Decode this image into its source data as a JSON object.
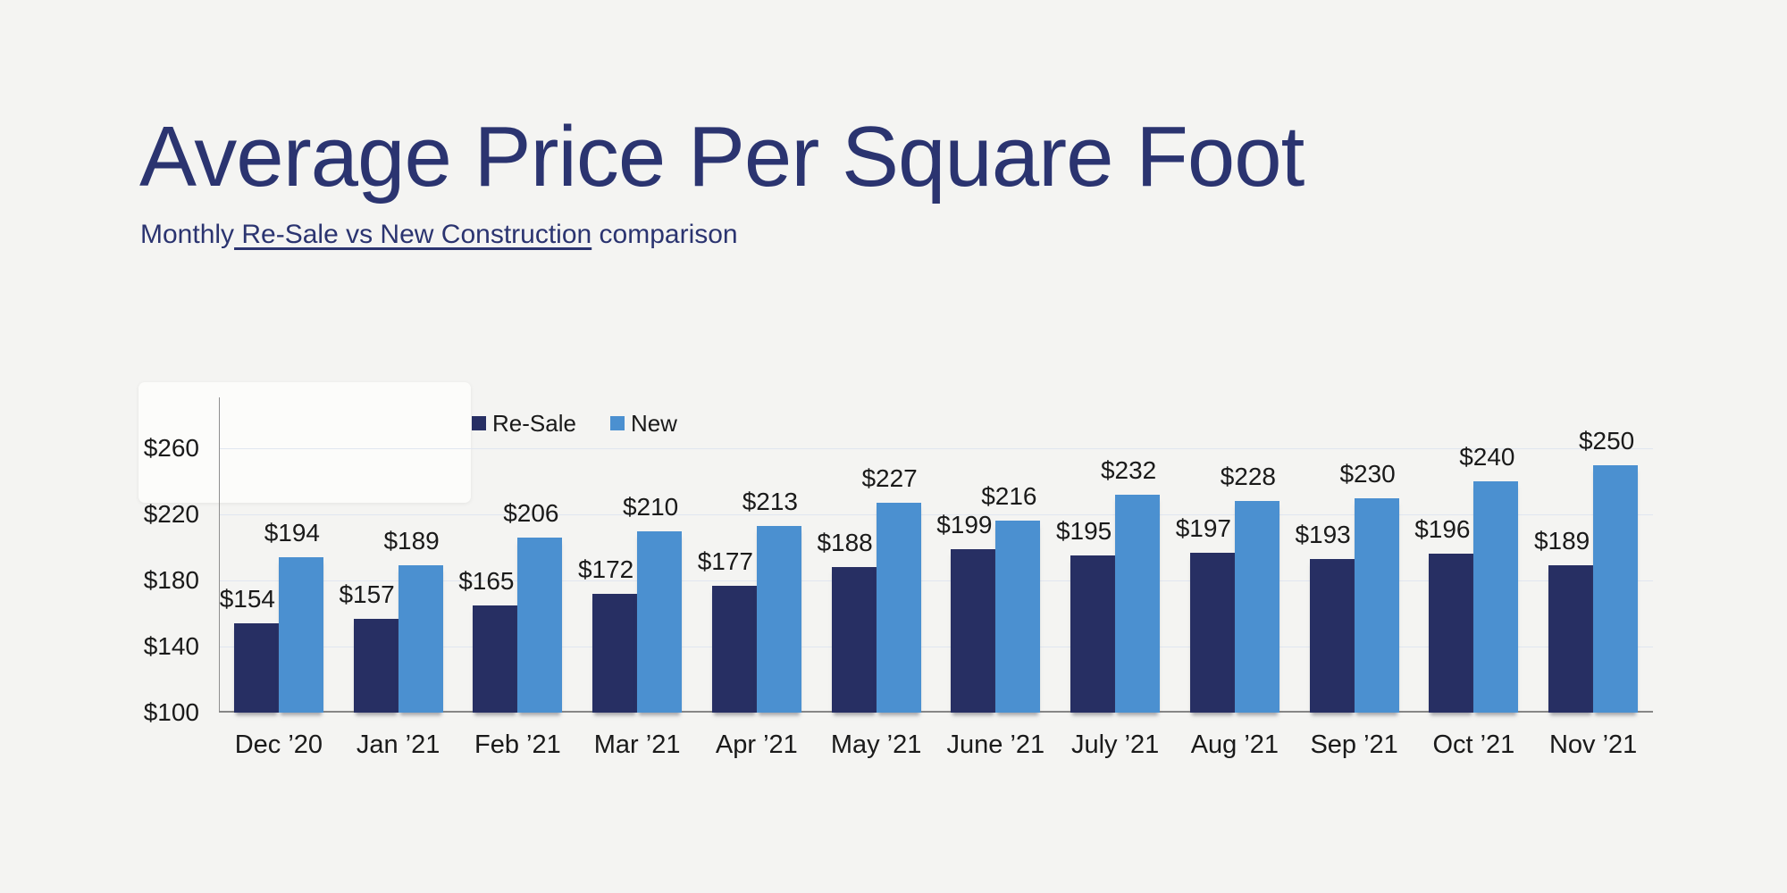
{
  "page": {
    "title": "Average Price Per Square Foot",
    "subtitle": {
      "prefix": "Monthly",
      "link": " Re-Sale vs New Construction",
      "suffix": " comparison"
    }
  },
  "colors": {
    "background": "#F4F4F2",
    "heading": "#2B3470",
    "resale_bar": "#272F63",
    "new_bar": "#4B90D0",
    "gridline": "#E0E6F0",
    "axis_line": "#878787",
    "text": "#1A1A1A"
  },
  "chart_data": {
    "type": "bar",
    "title": "Average Price Per Square Foot",
    "subtitle": "Monthly Re-Sale vs New Construction comparison",
    "categories": [
      "Dec ’20",
      "Jan ’21",
      "Feb ’21",
      "Mar ’21",
      "Apr ’21",
      "May ’21",
      "June ’21",
      "July ’21",
      "Aug ’21",
      "Sep ’21",
      "Oct ’21",
      "Nov ’21"
    ],
    "series": [
      {
        "name": "Re-Sale",
        "color": "#272F63",
        "values": [
          154,
          157,
          165,
          172,
          177,
          188,
          199,
          195,
          197,
          193,
          196,
          189
        ]
      },
      {
        "name": "New",
        "color": "#4B90D0",
        "values": [
          194,
          189,
          206,
          210,
          213,
          227,
          216,
          232,
          228,
          230,
          240,
          250
        ]
      }
    ],
    "value_prefix": "$",
    "ylim": [
      100,
      260
    ],
    "yticks": [
      100,
      140,
      180,
      220,
      260
    ],
    "ytick_labels": [
      "$100",
      "$140",
      "$180",
      "$220",
      "$260"
    ],
    "xlabel": "",
    "ylabel": "",
    "grid": true,
    "legend_position": "top"
  }
}
